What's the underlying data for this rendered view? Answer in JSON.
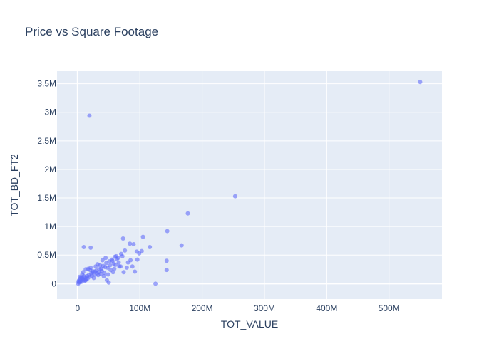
{
  "chart_data": {
    "type": "scatter",
    "title": "Price vs Square Footage",
    "xlabel": "TOT_VALUE",
    "ylabel": "TOT_BD_FT2",
    "xlim": [
      -33000000,
      585000000
    ],
    "ylim": [
      -270000,
      3720000
    ],
    "x_ticks": [
      {
        "value": 0,
        "label": "0"
      },
      {
        "value": 100000000,
        "label": "100M"
      },
      {
        "value": 200000000,
        "label": "200M"
      },
      {
        "value": 300000000,
        "label": "300M"
      },
      {
        "value": 400000000,
        "label": "400M"
      },
      {
        "value": 500000000,
        "label": "500M"
      }
    ],
    "y_ticks": [
      {
        "value": 0,
        "label": "0"
      },
      {
        "value": 500000,
        "label": "0.5M"
      },
      {
        "value": 1000000,
        "label": "1M"
      },
      {
        "value": 1500000,
        "label": "1.5M"
      },
      {
        "value": 2000000,
        "label": "2M"
      },
      {
        "value": 2500000,
        "label": "2.5M"
      },
      {
        "value": 3000000,
        "label": "3M"
      },
      {
        "value": 3500000,
        "label": "3.5M"
      }
    ],
    "grid": true,
    "colors": {
      "marker": "#636efa",
      "plot_bg": "#e5ecf6",
      "grid": "#ffffff",
      "text": "#2a3f5f"
    },
    "series": [
      {
        "marker_opacity": 0.6,
        "x": [
          550000000,
          253000000,
          177000000,
          167000000,
          144000000,
          143000000,
          143000000,
          125000000,
          19000000,
          10000000,
          21000000,
          73000000,
          84000000,
          90000000,
          105000000,
          103000000,
          116000000,
          95000000,
          76000000,
          70000000,
          62000000,
          45000000,
          40000000,
          55000000,
          60000000,
          85000000,
          99000000,
          72000000,
          67000000,
          58000000,
          52000000,
          48000000,
          44000000,
          38000000,
          35000000,
          30000000,
          28000000,
          25000000,
          22000000,
          18000000,
          15000000,
          12000000,
          8000000,
          5000000,
          3000000,
          2000000,
          1000000,
          50000000,
          47000000,
          42000000,
          37000000,
          33000000,
          26000000,
          24000000,
          20000000,
          16000000,
          13000000,
          10000000,
          7000000,
          4000000,
          61000000,
          66000000,
          69000000,
          79000000,
          88000000,
          92000000,
          57000000,
          53000000,
          49000000,
          43000000,
          39000000,
          34000000,
          31000000,
          27000000,
          23000000,
          19000000,
          14000000,
          11000000,
          9000000,
          6000000,
          6000000,
          9000000,
          13000000,
          17000000,
          21000000,
          29000000,
          36000000,
          41000000,
          46000000,
          51000000,
          56000000,
          63000000,
          2500000,
          1500000,
          3500000,
          4500000,
          7500000,
          11500000,
          32000000,
          74000000,
          81000000,
          96000000,
          59000000,
          65000000
        ],
        "y": [
          3530000,
          1530000,
          1230000,
          670000,
          920000,
          400000,
          240000,
          0,
          2940000,
          640000,
          630000,
          790000,
          700000,
          690000,
          820000,
          570000,
          640000,
          560000,
          580000,
          520000,
          480000,
          450000,
          410000,
          420000,
          470000,
          410000,
          530000,
          480000,
          300000,
          350000,
          320000,
          280000,
          290000,
          260000,
          250000,
          230000,
          210000,
          200000,
          180000,
          150000,
          130000,
          110000,
          80000,
          50000,
          30000,
          20000,
          0,
          20000,
          60000,
          130000,
          170000,
          150000,
          100000,
          220000,
          240000,
          90000,
          60000,
          130000,
          100000,
          40000,
          330000,
          370000,
          300000,
          280000,
          300000,
          210000,
          200000,
          240000,
          160000,
          190000,
          220000,
          200000,
          180000,
          160000,
          140000,
          120000,
          90000,
          70000,
          60000,
          30000,
          110000,
          200000,
          250000,
          260000,
          280000,
          300000,
          320000,
          310000,
          360000,
          390000,
          400000,
          430000,
          60000,
          40000,
          120000,
          90000,
          160000,
          50000,
          340000,
          200000,
          370000,
          420000,
          260000,
          450000
        ]
      }
    ]
  }
}
